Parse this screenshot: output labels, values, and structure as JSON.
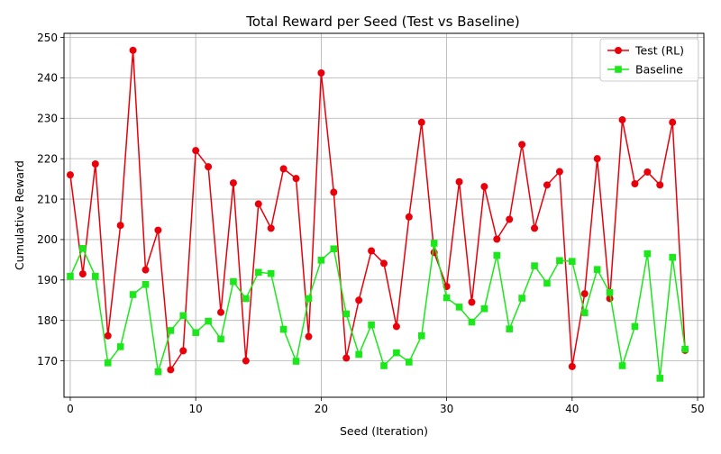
{
  "chart_data": {
    "type": "line",
    "title": "Total Reward per Seed (Test vs Baseline)",
    "xlabel": "Seed (Iteration)",
    "ylabel": "Cumulative Reward",
    "xlim": [
      -0.5,
      50.5
    ],
    "ylim": [
      161,
      251
    ],
    "xticks": [
      0,
      10,
      20,
      30,
      40,
      50
    ],
    "yticks": [
      170,
      180,
      190,
      200,
      210,
      220,
      230,
      240,
      250
    ],
    "grid": true,
    "legend_position": "upper-right",
    "x": [
      0,
      1,
      2,
      3,
      4,
      5,
      6,
      7,
      8,
      9,
      10,
      11,
      12,
      13,
      14,
      15,
      16,
      17,
      18,
      19,
      20,
      21,
      22,
      23,
      24,
      25,
      26,
      27,
      28,
      29,
      30,
      31,
      32,
      33,
      34,
      35,
      36,
      37,
      38,
      39,
      40,
      41,
      42,
      43,
      44,
      45,
      46,
      47,
      48,
      49
    ],
    "series": [
      {
        "name": "Test (RL)",
        "color": "#e8000b",
        "marker": "circle",
        "values": [
          216,
          191.5,
          218.7,
          176.2,
          203.5,
          246.8,
          192.5,
          202.3,
          167.8,
          172.5,
          222,
          218,
          182,
          214,
          170,
          208.8,
          202.8,
          217.5,
          215.1,
          176,
          241.2,
          211.7,
          170.7,
          185,
          197.2,
          194.1,
          178.5,
          205.6,
          229,
          196.8,
          188.4,
          214.3,
          184.5,
          213.1,
          200.1,
          205,
          223.5,
          202.8,
          213.5,
          216.8,
          168.6,
          186.6,
          220,
          185.4,
          229.6,
          213.8,
          216.7,
          213.5,
          229,
          172.6
        ]
      },
      {
        "name": "Baseline",
        "color": "#1ae81a",
        "marker": "square",
        "values": [
          190.9,
          197.8,
          190.9,
          169.5,
          173.5,
          186.4,
          188.9,
          167.3,
          177.5,
          181.2,
          177,
          179.8,
          175.4,
          189.6,
          185.4,
          191.9,
          191.6,
          177.8,
          169.9,
          185.4,
          194.9,
          197.7,
          181.6,
          171.6,
          178.9,
          168.8,
          172,
          169.7,
          176.2,
          199.1,
          185.6,
          183.3,
          179.6,
          182.9,
          196.1,
          177.9,
          185.5,
          193.5,
          189.2,
          194.8,
          194.6,
          181.9,
          192.6,
          186.9,
          168.8,
          178.5,
          196.5,
          165.7,
          195.6,
          172.9
        ]
      }
    ]
  }
}
